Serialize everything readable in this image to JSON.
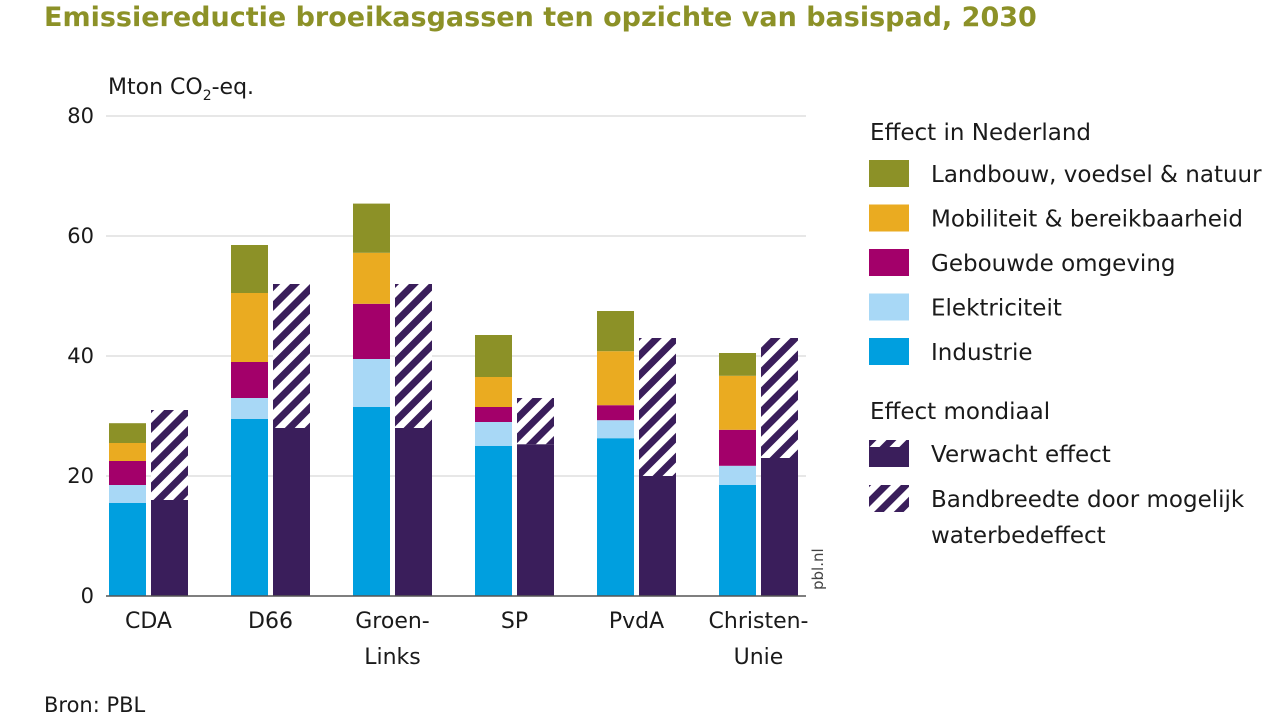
{
  "chart_data": {
    "type": "bar",
    "title": "Emissiereductie broeikasgassen ten opzichte van basispad, 2030",
    "ylabel_main": "Mton CO",
    "ylabel_sub": "2",
    "ylabel_suffix": "-eq.",
    "ylim": [
      0,
      80
    ],
    "yticks": [
      0,
      20,
      40,
      60,
      80
    ],
    "grid": true,
    "categories": [
      [
        "CDA"
      ],
      [
        "D66"
      ],
      [
        "Groen-",
        "Links"
      ],
      [
        "SP"
      ],
      [
        "PvdA"
      ],
      [
        "Christen-",
        "Unie"
      ]
    ],
    "legend_position": "right",
    "legend_group_nl": "Effect in Nederland",
    "legend_group_world": "Effect mondiaal",
    "series": [
      {
        "name": "Industrie",
        "color": "#009fdf",
        "values": [
          15.5,
          29.5,
          31.5,
          25,
          26.3,
          18.5
        ]
      },
      {
        "name": "Elektriciteit",
        "color": "#a8d8f6",
        "values": [
          3,
          3.5,
          8,
          4,
          3,
          3.2
        ]
      },
      {
        "name": "Gebouwde omgeving",
        "color": "#a3006a",
        "values": [
          4,
          6,
          9.2,
          2.5,
          2.5,
          6
        ]
      },
      {
        "name": "Mobiliteit & bereikbaarheid",
        "color": "#eaab21",
        "values": [
          3,
          11.5,
          8.5,
          5,
          9,
          9
        ]
      },
      {
        "name": "Landbouw, voedsel & natuur",
        "color": "#8c9127",
        "values": [
          3.3,
          8,
          8.2,
          7,
          6.7,
          3.8
        ]
      }
    ],
    "world": {
      "expected_name": "Verwacht effect",
      "range_name_line1": "Bandbreedte door mogelijk",
      "range_name_line2": "waterbedeffect",
      "expected_color": "#3a1e5b",
      "expected": [
        16,
        28,
        28,
        25.3,
        20,
        23
      ],
      "upper": [
        31,
        52,
        52,
        33,
        43,
        43
      ]
    },
    "source": "Bron: PBL",
    "credit": "pbl.nl"
  }
}
